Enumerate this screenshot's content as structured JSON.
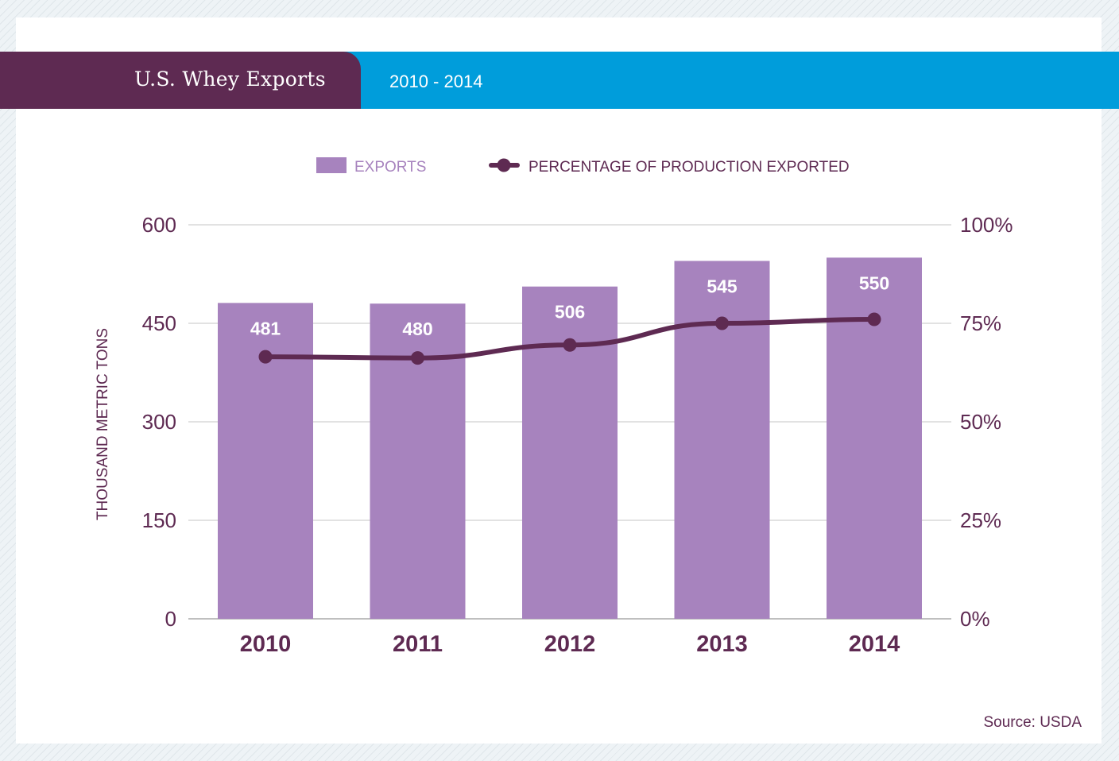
{
  "header": {
    "title": "U.S. Whey Exports",
    "subtitle": "2010 - 2014"
  },
  "source": "Source: USDA",
  "colors": {
    "bar": "#a783be",
    "line": "#5e2a52",
    "banner_blue": "#009ddb",
    "banner_purple": "#5e2a52",
    "label_text": "#5e2a52",
    "data_label": "#ffffff"
  },
  "chart_data": {
    "type": "bar",
    "title": "U.S. Whey Exports",
    "subtitle": "2010 - 2014",
    "categories": [
      "2010",
      "2011",
      "2012",
      "2013",
      "2014"
    ],
    "series": [
      {
        "name": "EXPORTS",
        "type": "bar",
        "axis": "left",
        "values": [
          481,
          480,
          506,
          545,
          550
        ],
        "data_labels": [
          "481",
          "480",
          "506",
          "545",
          "550"
        ]
      },
      {
        "name": "PERCENTAGE OF PRODUCTION EXPORTED",
        "type": "line",
        "axis": "right",
        "values": [
          66.5,
          66.2,
          69.5,
          75,
          76
        ]
      }
    ],
    "ylabel": "THOUSAND METRIC TONS",
    "ylim": [
      0,
      600
    ],
    "yticks": [
      "0",
      "150",
      "300",
      "450",
      "600"
    ],
    "y2lim": [
      0,
      100
    ],
    "y2ticks": [
      "0%",
      "25%",
      "50%",
      "75%",
      "100%"
    ],
    "grid": true,
    "legend_position": "top-center"
  }
}
